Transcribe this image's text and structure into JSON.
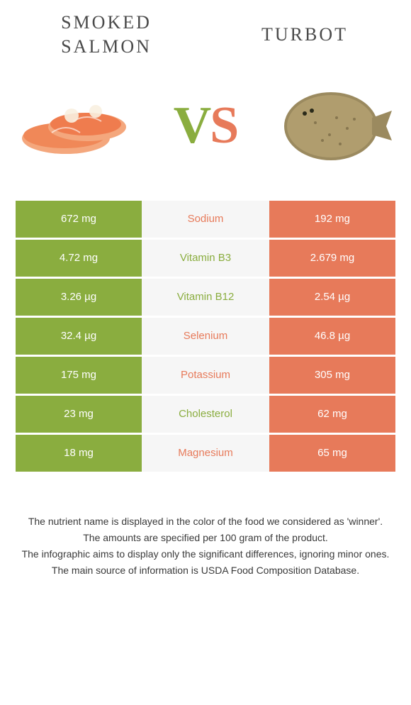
{
  "left_food": {
    "title": "SMOKED SALMON"
  },
  "right_food": {
    "title": "TURBOT"
  },
  "vs": {
    "v": "V",
    "s": "S"
  },
  "colors": {
    "green": "#8aad3f",
    "orange": "#e77a5a",
    "grey": "#f6f6f6"
  },
  "rows": [
    {
      "nutrient": "Sodium",
      "left": "672 mg",
      "right": "192 mg",
      "winner": "right"
    },
    {
      "nutrient": "Vitamin B3",
      "left": "4.72 mg",
      "right": "2.679 mg",
      "winner": "left"
    },
    {
      "nutrient": "Vitamin B12",
      "left": "3.26 µg",
      "right": "2.54 µg",
      "winner": "left"
    },
    {
      "nutrient": "Selenium",
      "left": "32.4 µg",
      "right": "46.8 µg",
      "winner": "right"
    },
    {
      "nutrient": "Potassium",
      "left": "175 mg",
      "right": "305 mg",
      "winner": "right"
    },
    {
      "nutrient": "Cholesterol",
      "left": "23 mg",
      "right": "62 mg",
      "winner": "left"
    },
    {
      "nutrient": "Magnesium",
      "left": "18 mg",
      "right": "65 mg",
      "winner": "right"
    }
  ],
  "footer": {
    "l1": "The nutrient name is displayed in the color of the food we considered as 'winner'.",
    "l2": "The amounts are specified per 100 gram of the product.",
    "l3": "The infographic aims to display only the significant differences, ignoring minor ones.",
    "l4": "The main source of information is USDA Food Composition Database."
  }
}
